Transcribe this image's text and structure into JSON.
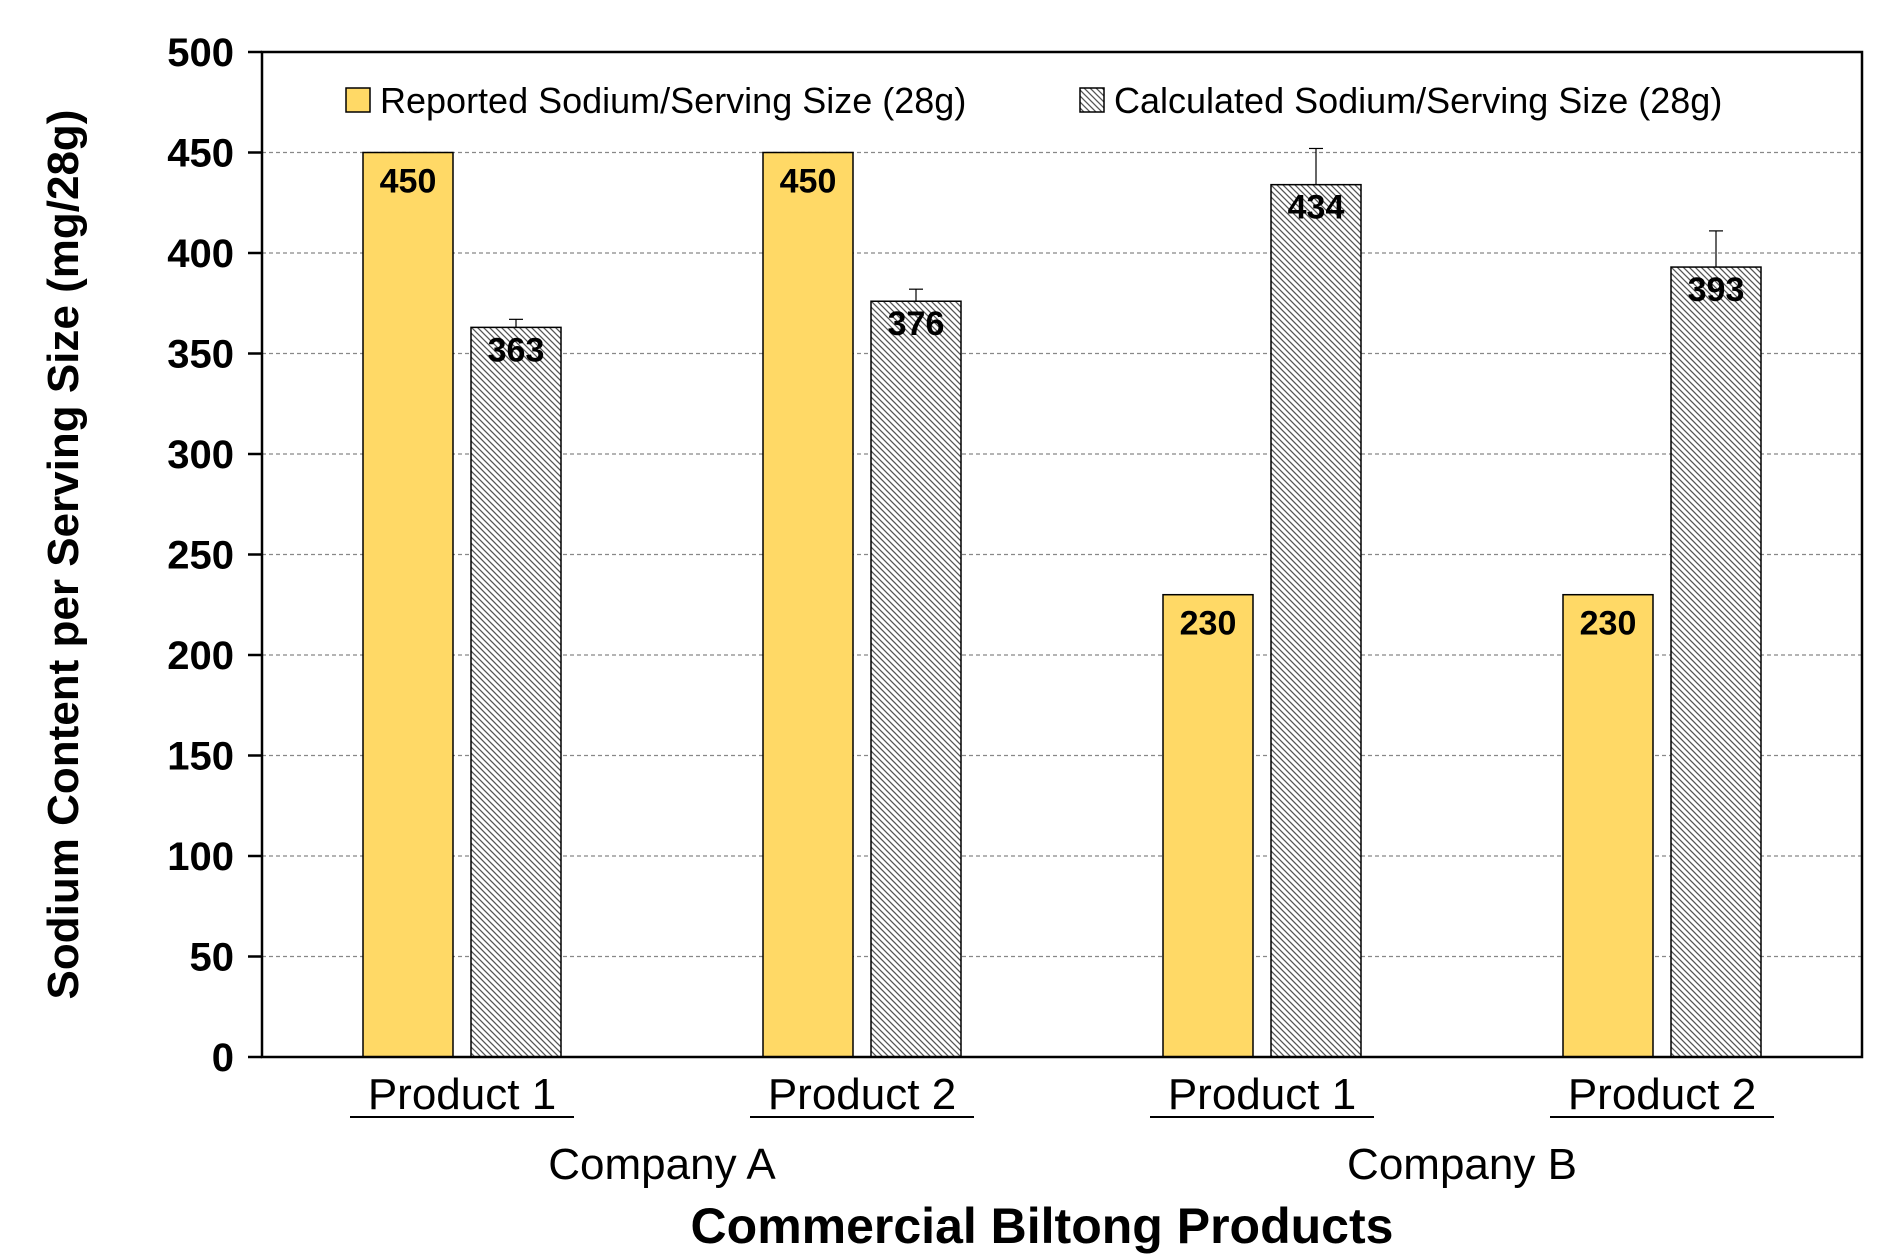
{
  "chart_data": {
    "type": "bar",
    "title": "",
    "xlabel": "Commercial Biltong Products",
    "ylabel": "Sodium Content per Serving Size (mg/28g)",
    "ylim": [
      0,
      500
    ],
    "yticks": [
      0,
      50,
      100,
      150,
      200,
      250,
      300,
      350,
      400,
      450,
      500
    ],
    "grid": true,
    "legend_position": "top",
    "categories": [
      "Product 1",
      "Product 2",
      "Product 1",
      "Product 2"
    ],
    "groups": [
      {
        "label": "Company A",
        "categories": [
          0,
          1
        ]
      },
      {
        "label": "Company B",
        "categories": [
          2,
          3
        ]
      }
    ],
    "series": [
      {
        "name": "Reported Sodium/Serving Size (28g)",
        "values": [
          450,
          450,
          230,
          230
        ],
        "labels": [
          "450",
          "450",
          "230",
          "230"
        ],
        "color": "#FFD966",
        "pattern": "solid",
        "errors": null
      },
      {
        "name": "Calculated Sodium/Serving Size (28g)",
        "values": [
          363,
          376,
          434,
          393
        ],
        "labels": [
          "363",
          "376",
          "434",
          "393"
        ],
        "color": "#D9E2D2",
        "pattern": "diagonal-hatch",
        "errors": [
          4,
          6,
          18,
          18
        ]
      }
    ]
  }
}
